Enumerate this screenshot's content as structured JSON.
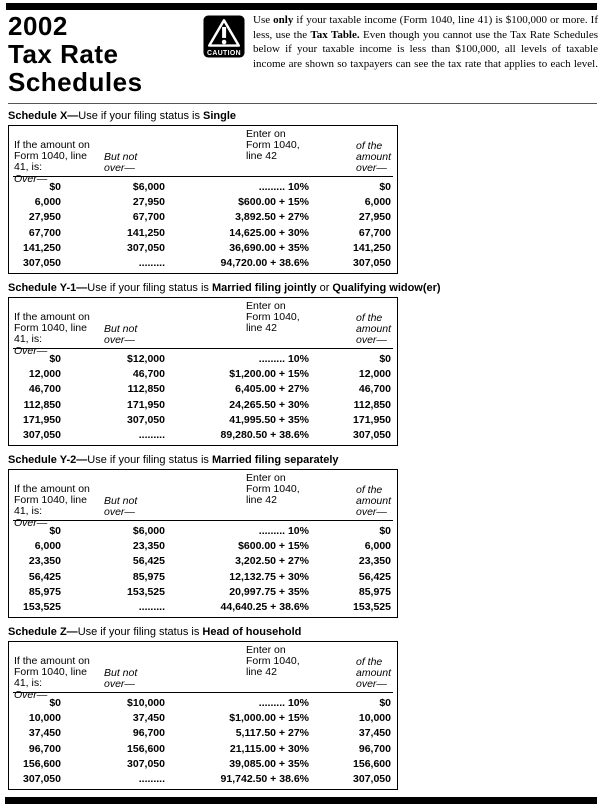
{
  "header": {
    "title_line1": "2002",
    "title_line2": "Tax Rate",
    "title_line3": "Schedules",
    "caution_label": "CAUTION",
    "note_segments": [
      {
        "text": "Use ",
        "bold": false
      },
      {
        "text": "only",
        "bold": true
      },
      {
        "text": " if your taxable income (Form 1040, line 41) is $100,000 or more. If less, use the ",
        "bold": false
      },
      {
        "text": "Tax Table.",
        "bold": true
      },
      {
        "text": " Even though you cannot use the Tax Rate Schedules below if your taxable income is less than $100,000, all levels of taxable income are shown so taxpayers can see the tax rate that applies to each level.",
        "bold": false
      }
    ]
  },
  "table_headers": {
    "col1": "If the amount on\nForm 1040, line\n41, is:",
    "col1_italic": "Over—",
    "col2": "But not\nover—",
    "col3": "Enter on\nForm 1040,\nline 42",
    "col4": "of the\namount\nover—"
  },
  "schedules": [
    {
      "id": "X",
      "title_segments": [
        {
          "text": "Schedule X—",
          "bold": true
        },
        {
          "text": "Use if your filing status is ",
          "bold": false
        },
        {
          "text": "Single",
          "bold": true
        }
      ],
      "rows": [
        [
          "$0",
          "$6,000",
          "......... 10%",
          "$0"
        ],
        [
          "6,000",
          "27,950",
          "$600.00 + 15%",
          "6,000"
        ],
        [
          "27,950",
          "67,700",
          "3,892.50 + 27%",
          "27,950"
        ],
        [
          "67,700",
          "141,250",
          "14,625.00 + 30%",
          "67,700"
        ],
        [
          "141,250",
          "307,050",
          "36,690.00 + 35%",
          "141,250"
        ],
        [
          "307,050",
          ".........",
          "94,720.00 + 38.6%",
          "307,050"
        ]
      ]
    },
    {
      "id": "Y-1",
      "title_segments": [
        {
          "text": "Schedule Y-1—",
          "bold": true
        },
        {
          "text": "Use if your filing status is ",
          "bold": false
        },
        {
          "text": "Married filing jointly",
          "bold": true
        },
        {
          "text": " or ",
          "bold": false
        },
        {
          "text": "Qualifying widow(er)",
          "bold": true
        }
      ],
      "rows": [
        [
          "$0",
          "$12,000",
          "......... 10%",
          "$0"
        ],
        [
          "12,000",
          "46,700",
          "$1,200.00 + 15%",
          "12,000"
        ],
        [
          "46,700",
          "112,850",
          "6,405.00 + 27%",
          "46,700"
        ],
        [
          "112,850",
          "171,950",
          "24,265.50 + 30%",
          "112,850"
        ],
        [
          "171,950",
          "307,050",
          "41,995.50 + 35%",
          "171,950"
        ],
        [
          "307,050",
          ".........",
          "89,280.50 + 38.6%",
          "307,050"
        ]
      ]
    },
    {
      "id": "Y-2",
      "title_segments": [
        {
          "text": "Schedule Y-2—",
          "bold": true
        },
        {
          "text": "Use if your filing status is ",
          "bold": false
        },
        {
          "text": "Married filing separately",
          "bold": true
        }
      ],
      "rows": [
        [
          "$0",
          "$6,000",
          "......... 10%",
          "$0"
        ],
        [
          "6,000",
          "23,350",
          "$600.00 + 15%",
          "6,000"
        ],
        [
          "23,350",
          "56,425",
          "3,202.50 + 27%",
          "23,350"
        ],
        [
          "56,425",
          "85,975",
          "12,132.75 + 30%",
          "56,425"
        ],
        [
          "85,975",
          "153,525",
          "20,997.75 + 35%",
          "85,975"
        ],
        [
          "153,525",
          ".........",
          "44,640.25 + 38.6%",
          "153,525"
        ]
      ]
    },
    {
      "id": "Z",
      "title_segments": [
        {
          "text": "Schedule Z—",
          "bold": true
        },
        {
          "text": "Use if your filing status is ",
          "bold": false
        },
        {
          "text": "Head of household",
          "bold": true
        }
      ],
      "rows": [
        [
          "$0",
          "$10,000",
          "......... 10%",
          "$0"
        ],
        [
          "10,000",
          "37,450",
          "$1,000.00 + 15%",
          "10,000"
        ],
        [
          "37,450",
          "96,700",
          "5,117.50 + 27%",
          "37,450"
        ],
        [
          "96,700",
          "156,600",
          "21,115.00 + 30%",
          "96,700"
        ],
        [
          "156,600",
          "307,050",
          "39,085.00 + 35%",
          "156,600"
        ],
        [
          "307,050",
          ".........",
          "91,742.50 + 38.6%",
          "307,050"
        ]
      ]
    }
  ]
}
